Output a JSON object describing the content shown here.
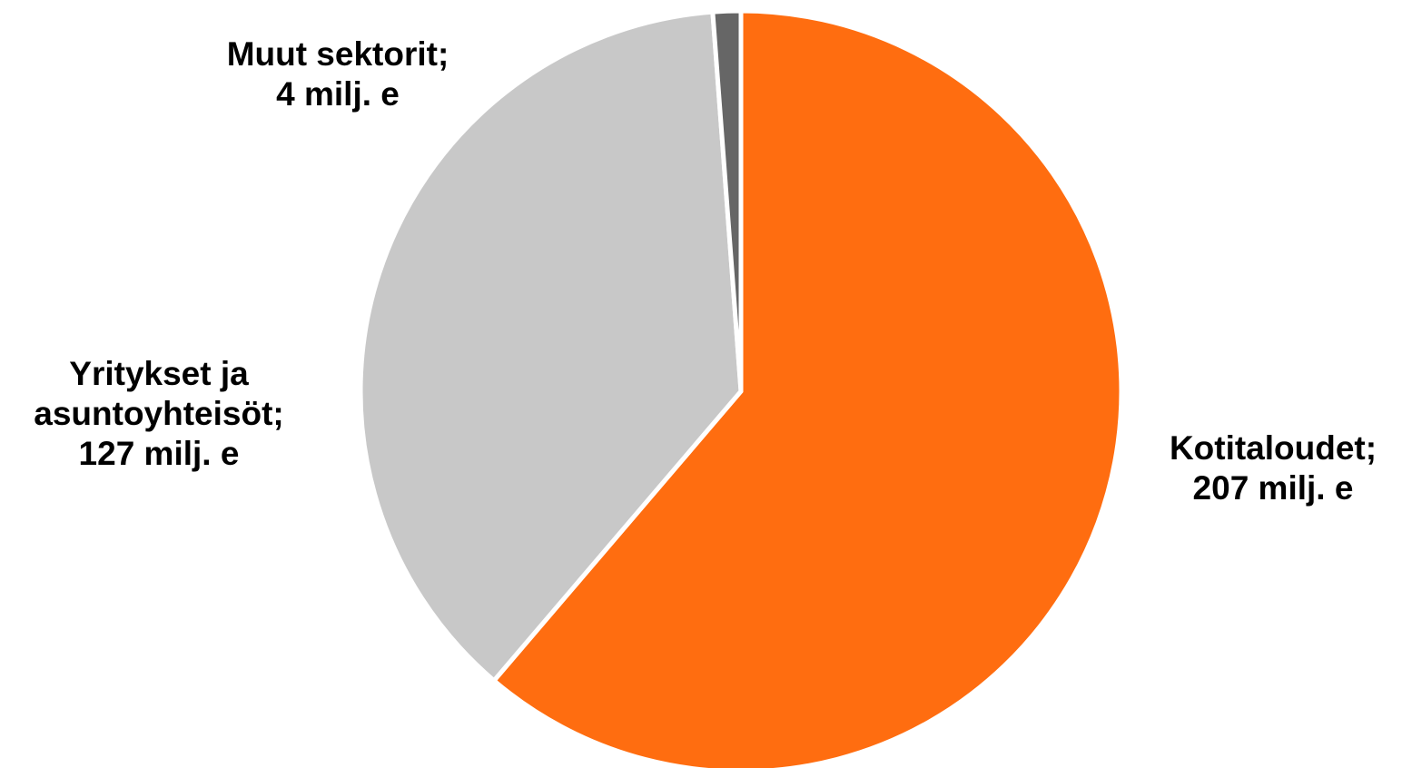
{
  "chart_data": {
    "type": "pie",
    "unit": "milj. e",
    "slices": [
      {
        "name": "Kotitaloudet",
        "value": 207,
        "label_line1": "Kotitaloudet;",
        "label_line2": "207 milj. e",
        "color": "#FF6D10"
      },
      {
        "name": "Yritykset ja asuntoyhteisöt",
        "value": 127,
        "label_line1": "Yritykset ja",
        "label_line2": "asuntoyhteisöt;",
        "label_line3": "127 milj. e",
        "color": "#C8C8C8"
      },
      {
        "name": "Muut sektorit",
        "value": 4,
        "label_line1": "Muut sektorit;",
        "label_line2": "4 milj. e",
        "color": "#666666"
      }
    ],
    "start_angle": "12 o'clock",
    "direction": "clockwise",
    "legend": "none",
    "slice_separator_color": "#FFFFFF"
  }
}
